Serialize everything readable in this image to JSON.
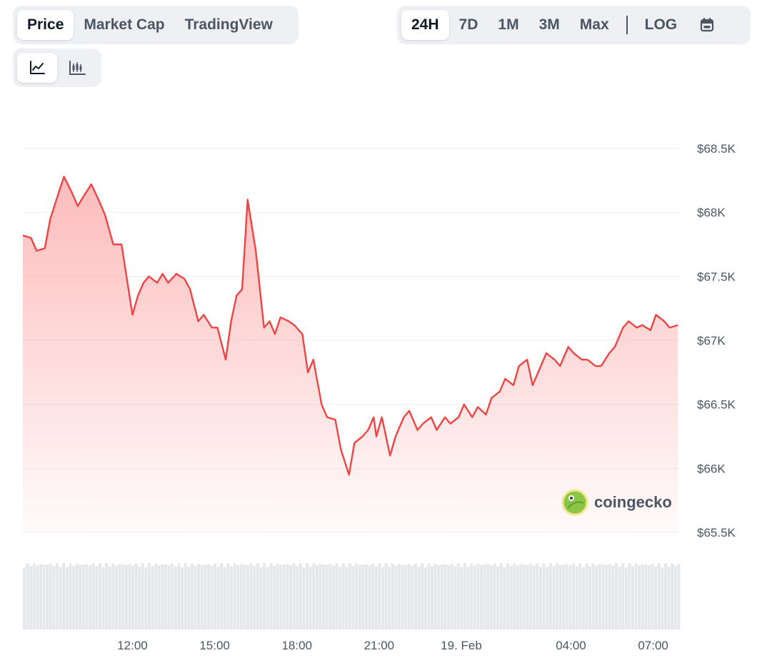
{
  "tabs": [
    {
      "label": "Price",
      "active": true
    },
    {
      "label": "Market Cap",
      "active": false
    },
    {
      "label": "TradingView",
      "active": false
    }
  ],
  "ranges": [
    {
      "label": "24H",
      "active": true
    },
    {
      "label": "7D",
      "active": false
    },
    {
      "label": "1M",
      "active": false
    },
    {
      "label": "3M",
      "active": false
    },
    {
      "label": "Max",
      "active": false
    }
  ],
  "log_label": "LOG",
  "chart_type_buttons": [
    {
      "icon": "line-chart-icon",
      "active": true
    },
    {
      "icon": "candlestick-chart-icon",
      "active": false
    }
  ],
  "calendar_icon": "calendar-icon",
  "watermark": {
    "text": "coingecko",
    "icon": "coingecko-logo-icon"
  },
  "colors": {
    "line": "#ef4444",
    "fill_top": "#fca5a5",
    "volume": "#e5e7eb"
  },
  "chart_data": {
    "type": "area",
    "y_tick_labels": [
      "$68.5K",
      "$68K",
      "$67.5K",
      "$67K",
      "$66.5K",
      "$66K",
      "$65.5K"
    ],
    "y_ticks": [
      68500,
      68000,
      67500,
      67000,
      66500,
      66000,
      65500
    ],
    "ylim": [
      65500,
      68500
    ],
    "x_tick_labels": [
      "12:00",
      "15:00",
      "18:00",
      "21:00",
      "19. Feb",
      "04:00",
      "07:00"
    ],
    "x_tick_hours": [
      12,
      15,
      18,
      21,
      24,
      28,
      31
    ],
    "xlim_hours": [
      8,
      32
    ],
    "grid": true,
    "series": [
      {
        "x_hours": [
          8.0,
          8.3,
          8.5,
          8.8,
          9.0,
          9.3,
          9.5,
          9.8,
          10.0,
          10.2,
          10.5,
          10.8,
          11.0,
          11.3,
          11.6,
          12.0,
          12.2,
          12.4,
          12.6,
          12.9,
          13.1,
          13.3,
          13.6,
          13.9,
          14.1,
          14.4,
          14.6,
          14.9,
          15.1,
          15.4,
          15.6,
          15.8,
          16.0,
          16.2,
          16.5,
          16.8,
          17.0,
          17.2,
          17.4,
          17.7,
          17.9,
          18.2,
          18.4,
          18.6,
          18.9,
          19.1,
          19.4,
          19.6,
          19.9,
          20.1,
          20.4,
          20.6,
          20.8,
          20.9,
          21.1,
          21.4,
          21.6,
          21.9,
          22.1,
          22.4,
          22.6,
          22.9,
          23.1,
          23.4,
          23.6,
          23.9,
          24.1,
          24.4,
          24.6,
          24.9,
          25.1,
          25.4,
          25.6,
          25.9,
          26.1,
          26.4,
          26.6,
          26.9,
          27.1,
          27.4,
          27.6,
          27.9,
          28.1,
          28.4,
          28.6,
          28.9,
          29.1,
          29.4,
          29.6,
          29.9,
          30.1,
          30.4,
          30.6,
          30.9,
          31.1,
          31.4,
          31.6,
          31.9
        ],
        "values": [
          67820,
          67800,
          67700,
          67720,
          67950,
          68150,
          68280,
          68150,
          68050,
          68120,
          68220,
          68080,
          67980,
          67750,
          67750,
          67200,
          67350,
          67450,
          67500,
          67450,
          67520,
          67450,
          67520,
          67480,
          67400,
          67150,
          67200,
          67100,
          67100,
          66850,
          67150,
          67350,
          67400,
          68100,
          67700,
          67100,
          67150,
          67050,
          67180,
          67150,
          67120,
          67050,
          66750,
          66850,
          66500,
          66400,
          66380,
          66150,
          65950,
          66200,
          66250,
          66300,
          66400,
          66250,
          66400,
          66100,
          66250,
          66400,
          66450,
          66300,
          66350,
          66400,
          66300,
          66400,
          66350,
          66400,
          66500,
          66400,
          66480,
          66420,
          66550,
          66600,
          66700,
          66650,
          66800,
          66850,
          66650,
          66800,
          66900,
          66850,
          66800,
          66950,
          66900,
          66850,
          66850,
          66800,
          66800,
          66900,
          66950,
          67100,
          67150,
          67100,
          67120,
          67080,
          67200,
          67150,
          67100,
          67120
        ],
        "volume_share": 0.85
      }
    ]
  }
}
